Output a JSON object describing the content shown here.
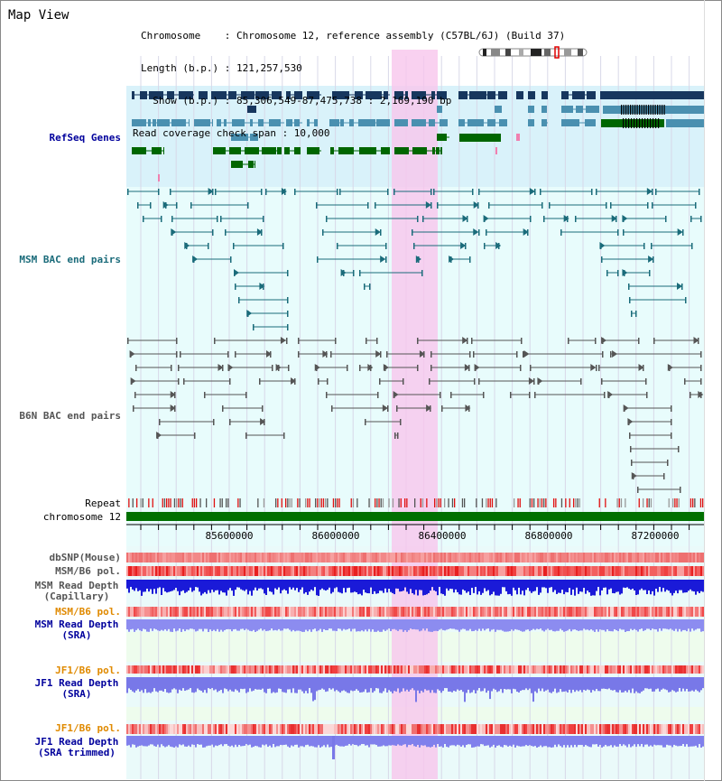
{
  "header": {
    "title": "Map View",
    "chromosome_line": "Chromosome    : Chromosome 12, reference assembly (C57BL/6J) (Build 37)",
    "length_line": "Length (b.p.) : 121,257,530",
    "show_line": "  Show (b.p.) : 85,306,549-87,475,738 : 2,169,190 bp",
    "coverage_line": "Read coverage check span : 10,000"
  },
  "tracks": {
    "refseq": "RefSeq Genes",
    "msm_bac": "MSM BAC end pairs",
    "b6n_bac": "B6N BAC end pairs",
    "repeat": "Repeat",
    "chromosome": "chromosome 12",
    "dbsnp": "dbSNP(Mouse)",
    "msm_pol_1": "MSM/B6 pol.",
    "msm_depth_cap": "MSM Read Depth",
    "msm_depth_cap_sub": "(Capillary)",
    "msm_pol_2": "MSM/B6 pol.",
    "msm_depth_sra": "MSM Read Depth",
    "msm_depth_sra_sub": "(SRA)",
    "jf1_pol_1": "JF1/B6 pol.",
    "jf1_depth_sra": "JF1 Read Depth",
    "jf1_depth_sra_sub": "(SRA)",
    "jf1_pol_2": "JF1/B6 pol.",
    "jf1_depth_trim": "JF1 Read Depth",
    "jf1_depth_trim_sub": "(SRA trimmed)"
  },
  "axis": {
    "ticks": [
      "85600000",
      "86000000",
      "86400000",
      "86800000",
      "87200000"
    ]
  },
  "colors": {
    "refseq_dark": "#17375e",
    "refseq_mid": "#4a90b0",
    "refseq_green": "#006600",
    "msm_line": "#1a6b7a",
    "b6n_line": "#555555",
    "highlight": "#f7c6ec",
    "label_blue": "#00009c",
    "label_orange": "#e08a00",
    "label_teal": "#1a6b7a"
  }
}
